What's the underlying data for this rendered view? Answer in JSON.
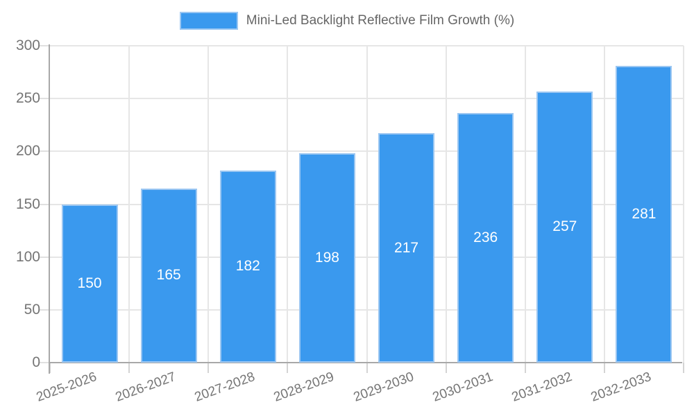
{
  "chart_data": {
    "type": "bar",
    "title": "Mini-Led Backlight Reflective Film Growth (%)",
    "legend_position": "top",
    "categories": [
      "2025-2026",
      "2026-2027",
      "2027-2028",
      "2028-2029",
      "2029-2030",
      "2030-2031",
      "2031-2032",
      "2032-2033"
    ],
    "series": [
      {
        "name": "Mini-Led Backlight Reflective Film Growth (%)",
        "values": [
          150,
          165,
          182,
          198,
          217,
          236,
          257,
          281
        ]
      }
    ],
    "value_labels_shown": true,
    "xlabel": "",
    "ylabel": "",
    "ylim": [
      0,
      300
    ],
    "ytick_step": 50,
    "yticks": [
      0,
      50,
      100,
      150,
      200,
      250,
      300
    ],
    "grid": true,
    "x_label_rotation_deg": -20,
    "colors": {
      "bar_fill": "#3a99ee",
      "bar_border": "#9cc7f2",
      "grid": "#e6e6e6",
      "axis": "#a8a8a8",
      "tick_label": "#757575",
      "legend_text": "#666666",
      "value_label": "#ffffff",
      "background": "#ffffff"
    }
  }
}
